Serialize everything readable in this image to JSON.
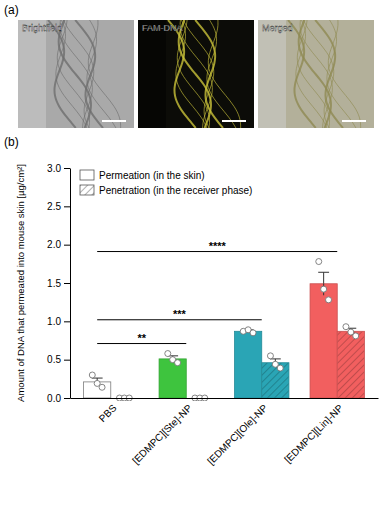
{
  "figure": {
    "panel_labels": [
      "(a)",
      "(b)"
    ],
    "images": [
      "Brightfield",
      "FAM-DNA",
      "Merged"
    ]
  },
  "chart_data": {
    "type": "bar",
    "y_label": "Amount of DNA that permeated into mouse skin [µg/cm²]",
    "categories": [
      "PBS",
      "[EDMPC][Ste]-NP",
      "[EDMPC][Ole]-NP",
      "[EDMPC][Lin]-NP"
    ],
    "series": [
      {
        "name": "Permeation (in the skin)",
        "colors": [
          "#ffffff",
          "#3ec43e",
          "#2aa5b5",
          "#f25f5f"
        ],
        "values": [
          0.21,
          0.51,
          0.87,
          1.49
        ],
        "errors": [
          0.05,
          0.04,
          0.02,
          0.15
        ],
        "points": [
          [
            0.3,
            0.19,
            0.14
          ],
          [
            0.58,
            0.5,
            0.46
          ],
          [
            0.87,
            0.89,
            0.85
          ],
          [
            1.78,
            1.42,
            1.28
          ]
        ]
      },
      {
        "name": "Penetration (in the receiver phase)",
        "colors": [
          "#ffffff",
          "#3ec43e",
          "#2aa5b5",
          "#f25f5f"
        ],
        "values": [
          0,
          0,
          0.46,
          0.87
        ],
        "errors": [
          0,
          0,
          0.05,
          0.04
        ],
        "points": [
          [
            0,
            0,
            0
          ],
          [
            0,
            0,
            0
          ],
          [
            0.55,
            0.44,
            0.39
          ],
          [
            0.93,
            0.86,
            0.81
          ]
        ]
      }
    ],
    "ylim": [
      0,
      3
    ],
    "yticks": [
      {
        "value": 0,
        "label": "0.0"
      },
      {
        "value": 0.5,
        "label": "0.5"
      },
      {
        "value": 1,
        "label": "1.0"
      },
      {
        "value": 1.5,
        "label": "1.5"
      },
      {
        "value": 2,
        "label": "2.0"
      },
      {
        "value": 2.5,
        "label": "2.5"
      },
      {
        "value": 3,
        "label": "3.0"
      }
    ],
    "grid": false,
    "legend": "upper left",
    "annotations": [
      {
        "from": "PBS",
        "to": "[EDMPC][Ste]-NP",
        "label": "**"
      },
      {
        "from": "PBS",
        "to": "[EDMPC][Ole]-NP",
        "label": "***"
      },
      {
        "from": "PBS",
        "to": "[EDMPC][Lin]-NP",
        "label": "****"
      }
    ]
  }
}
